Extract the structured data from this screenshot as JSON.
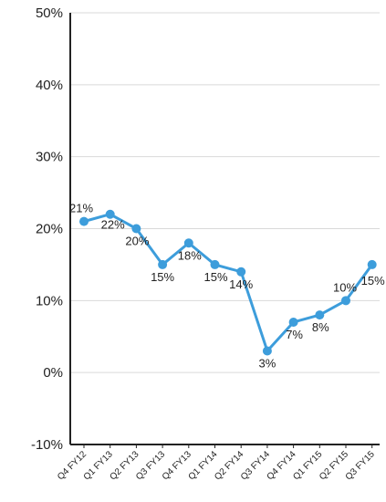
{
  "chart_data": {
    "type": "line",
    "categories": [
      "Q4 FY12",
      "Q1 FY13",
      "Q2 FY13",
      "Q3 FY13",
      "Q4 FY13",
      "Q1 FY14",
      "Q2 FY14",
      "Q3 FY14",
      "Q4 FY14",
      "Q1 FY15",
      "Q2 FY15",
      "Q3 FY15"
    ],
    "series": [
      {
        "values": [
          21,
          22,
          20,
          15,
          18,
          15,
          14,
          3,
          7,
          8,
          10,
          15
        ],
        "data_labels": [
          "21%",
          "22%",
          "20%",
          "15%",
          "18%",
          "15%",
          "14%",
          "3%",
          "7%",
          "8%",
          "10%",
          "15%"
        ],
        "color": "#3d9ddb"
      }
    ],
    "ylim": [
      -10,
      50
    ],
    "y_ticks": [
      -10,
      0,
      10,
      20,
      30,
      40,
      50
    ],
    "y_tick_labels": [
      "-10%",
      "0%",
      "10%",
      "20%",
      "30%",
      "40%",
      "50%"
    ],
    "grid": true,
    "title": "",
    "xlabel": "",
    "ylabel": ""
  }
}
